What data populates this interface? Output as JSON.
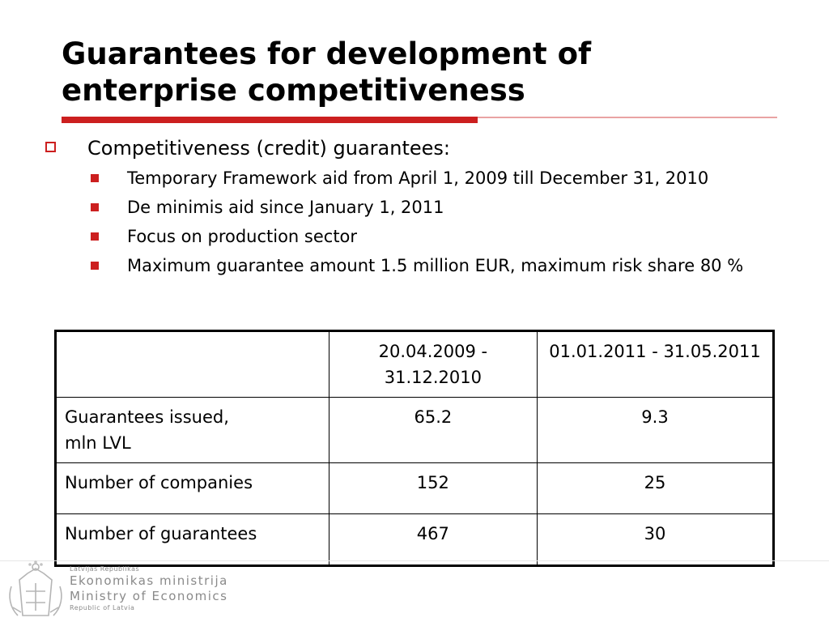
{
  "slide": {
    "title": "Guarantees for development of enterprise competitiveness",
    "bullet": "Competitiveness  (credit) guarantees:",
    "sub_bullets": [
      "Temporary Framework aid from April 1, 2009 till December 31, 2010",
      "De minimis aid since January 1, 2011",
      "Focus on production sector",
      "Maximum guarantee amount 1.5 million EUR, maximum risk share 80 %"
    ]
  },
  "table": {
    "columns": [
      "",
      "20.04.2009 - 31.12.2010",
      "01.01.2011 - 31.05.2011"
    ],
    "rows": [
      {
        "label_line1": "Guarantees issued,",
        "label_line2": "mln LVL",
        "values": [
          "65.2",
          "9.3"
        ]
      },
      {
        "label": "Number of companies",
        "values": [
          "152",
          "25"
        ]
      },
      {
        "label": "Number of guarantees",
        "values": [
          "467",
          "30"
        ]
      }
    ]
  },
  "footer": {
    "org_top": "Latvijas Republikas",
    "org_lv": "Ekonomikas ministrija",
    "org_en": "Ministry of Economics",
    "org_bottom": "Republic of Latvia",
    "logo_icon": "coat-of-arms-icon"
  },
  "colors": {
    "accent": "#cc1f1f",
    "footer_text": "#8a8a8a"
  }
}
